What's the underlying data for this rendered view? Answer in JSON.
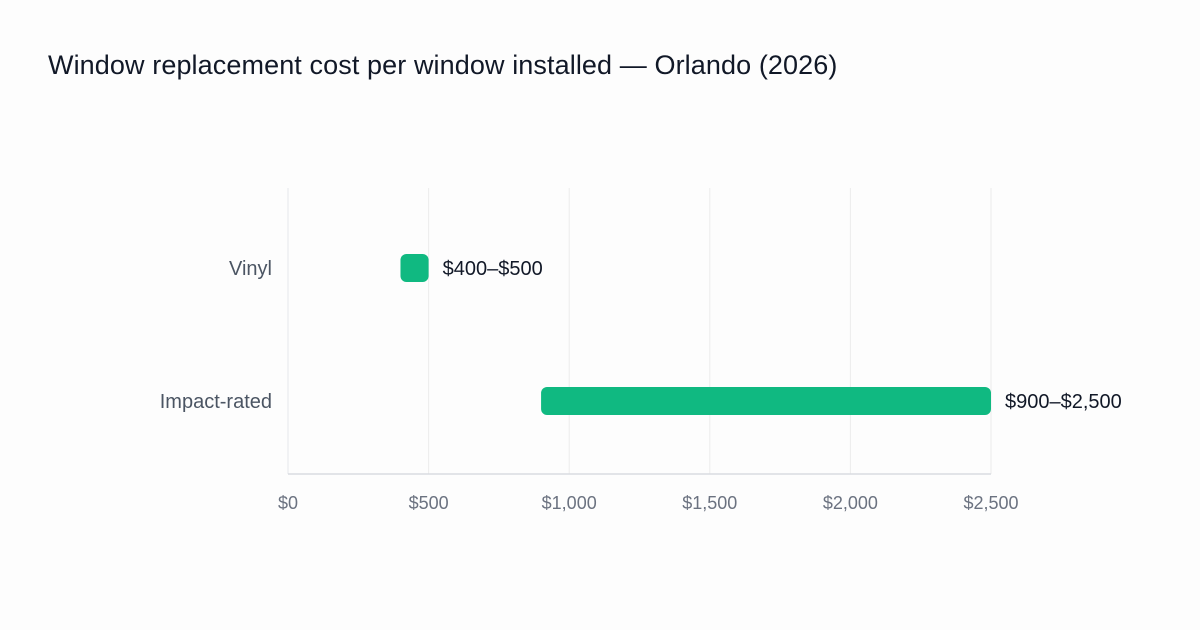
{
  "chart_data": {
    "type": "bar",
    "orientation": "horizontal",
    "subtype": "range",
    "title": "Window replacement cost per window installed — Orlando (2026)",
    "xlabel": "",
    "ylabel": "",
    "xlim": [
      0,
      2500
    ],
    "x_ticks": [
      0,
      500,
      1000,
      1500,
      2000,
      2500
    ],
    "x_tick_labels": [
      "$0",
      "$500",
      "$1,000",
      "$1,500",
      "$2,000",
      "$2,500"
    ],
    "grid": true,
    "legend": "none",
    "categories": [
      "Vinyl",
      "Impact-rated"
    ],
    "series": [
      {
        "color": "#10b981",
        "ranges": [
          [
            400,
            500
          ],
          [
            900,
            2500
          ]
        ],
        "labels": [
          "$400–$500",
          "$900–$2,500"
        ]
      }
    ]
  }
}
